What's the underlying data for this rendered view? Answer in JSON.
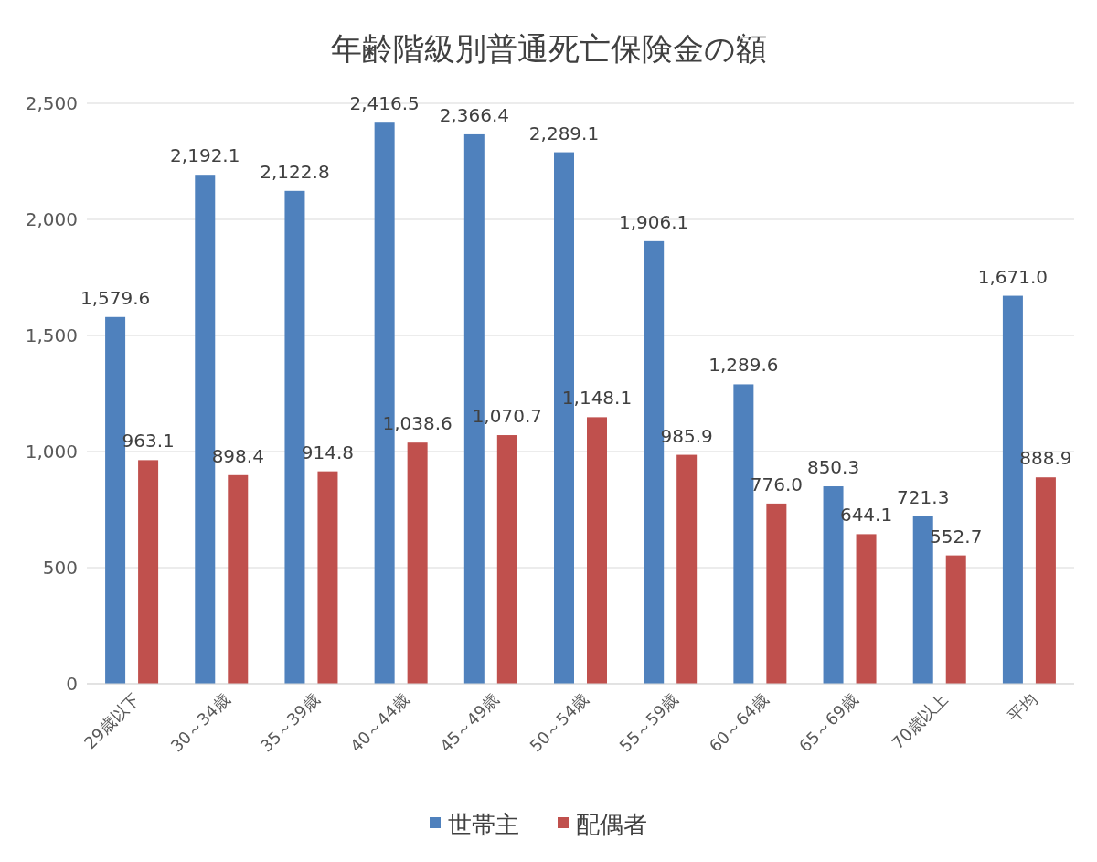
{
  "chart_data": {
    "type": "bar",
    "title": "年齢階級別普通死亡保険金の額",
    "categories": [
      "29歳以下",
      "30～34歳",
      "35～39歳",
      "40～44歳",
      "45～49歳",
      "50～54歳",
      "55～59歳",
      "60～64歳",
      "65～69歳",
      "70歳以上",
      "平均"
    ],
    "series": [
      {
        "name": "世帯主",
        "color": "#4f81bd",
        "values": [
          1579.6,
          2192.1,
          2122.8,
          2416.5,
          2366.4,
          2289.1,
          1906.1,
          1289.6,
          850.3,
          721.3,
          1671.0
        ],
        "value_labels": [
          "1,579.6",
          "2,192.1",
          "2,122.8",
          "2,416.5",
          "2,366.4",
          "2,289.1",
          "1,906.1",
          "1,289.6",
          "850.3",
          "721.3",
          "1,671.0"
        ]
      },
      {
        "name": "配偶者",
        "color": "#c0504d",
        "values": [
          963.1,
          898.4,
          914.8,
          1038.6,
          1070.7,
          1148.1,
          985.9,
          776.0,
          644.1,
          552.7,
          888.9
        ],
        "value_labels": [
          "963.1",
          "898.4",
          "914.8",
          "1,038.6",
          "1,070.7",
          "1,148.1",
          "985.9",
          "776.0",
          "644.1",
          "552.7",
          "888.9"
        ]
      }
    ],
    "ylim": [
      0,
      2500
    ],
    "yticks": [
      0,
      {
        "value": 500,
        "label": "500"
      },
      {
        "value": 1000,
        "label": "1,000"
      },
      {
        "value": 1500,
        "label": "1,500"
      },
      {
        "value": 2000,
        "label": "2,000"
      },
      {
        "value": 2500,
        "label": "2,500"
      }
    ],
    "grid": "y",
    "legend": "bottom"
  }
}
